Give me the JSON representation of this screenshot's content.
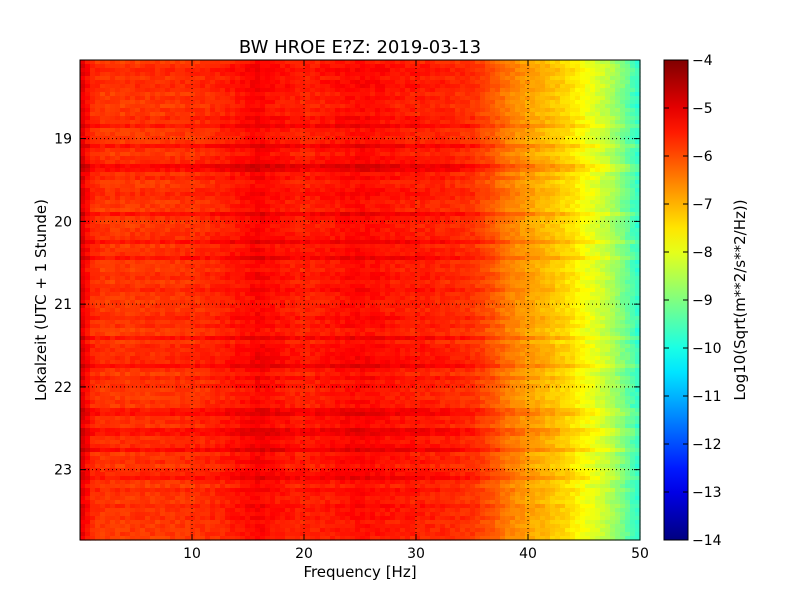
{
  "chart_data": {
    "type": "heatmap",
    "title": "BW HROE E?Z: 2019-03-13",
    "xlabel": "Frequency [Hz]",
    "ylabel": "Lokalzeit (UTC + 1 Stunde)",
    "xlim": [
      0,
      50
    ],
    "ylim": [
      18.05,
      23.85
    ],
    "y_inverted": true,
    "x_ticks": [
      10,
      20,
      30,
      40,
      50
    ],
    "x_tick_labels": [
      "10",
      "20",
      "30",
      "40",
      "50"
    ],
    "y_ticks": [
      19,
      20,
      21,
      22,
      23
    ],
    "y_tick_labels": [
      "19",
      "20",
      "21",
      "22",
      "23"
    ],
    "grid": true,
    "colormap": "jet",
    "colorbar": {
      "label": "Log10(Sqrt(m**2/s**2/Hz))",
      "vmin": -14,
      "vmax": -4,
      "ticks": [
        -4,
        -5,
        -6,
        -7,
        -8,
        -9,
        -10,
        -11,
        -12,
        -13,
        -14
      ],
      "tick_labels": [
        "−4",
        "−5",
        "−6",
        "−7",
        "−8",
        "−9",
        "−10",
        "−11",
        "−12",
        "−13",
        "−14"
      ]
    },
    "spectral_profile": {
      "frequency_hz": [
        0,
        0.5,
        1,
        2,
        5,
        10,
        12,
        15,
        16,
        17,
        20,
        25,
        28,
        32,
        35,
        37,
        38,
        40,
        42,
        44,
        45,
        46,
        47,
        48,
        49,
        50
      ],
      "value": [
        -4.9,
        -5.2,
        -5.6,
        -5.75,
        -5.75,
        -5.7,
        -5.6,
        -5.35,
        -5.2,
        -5.35,
        -5.55,
        -5.3,
        -5.45,
        -5.55,
        -5.7,
        -6.1,
        -6.4,
        -6.8,
        -7.1,
        -7.5,
        -7.8,
        -8.05,
        -8.35,
        -8.8,
        -9.3,
        -9.8
      ]
    },
    "noisy_time_bands": [
      18.85,
      19.1,
      19.35,
      19.9,
      20.25,
      20.45,
      21.4,
      21.75,
      22.3,
      22.55,
      22.75,
      23.1
    ]
  }
}
